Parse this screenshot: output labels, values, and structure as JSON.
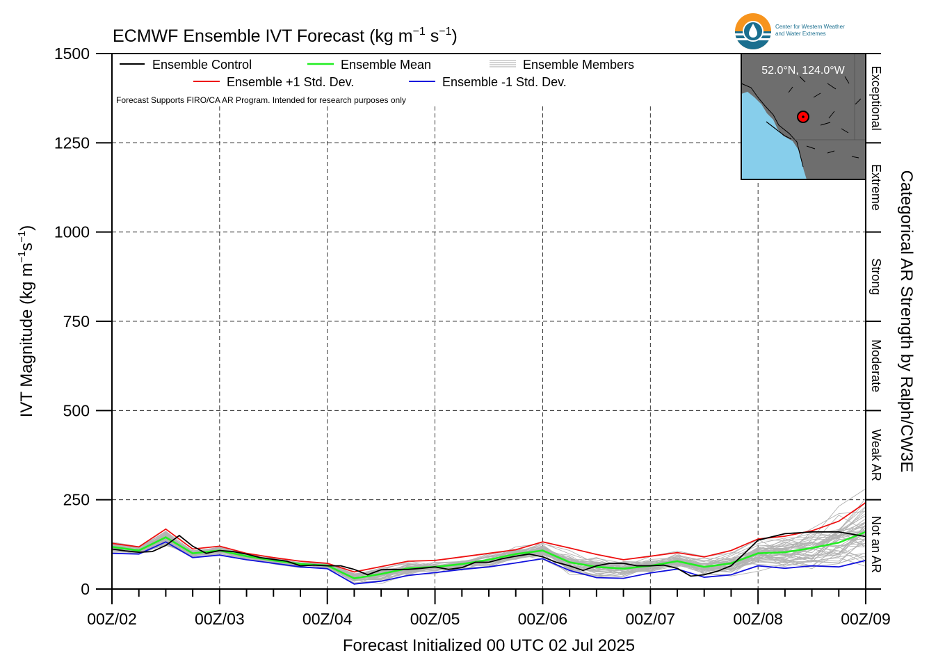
{
  "chart_data": {
    "type": "line",
    "title": "ECMWF Ensemble IVT Forecast (kg m",
    "title_units": [
      {
        "base": "ECMWF Ensemble IVT Forecast (kg m",
        "sup": "−1"
      },
      {
        "base": " s",
        "sup": "−1"
      },
      {
        "base": ")",
        "sup": ""
      }
    ],
    "ylabel_parts": [
      {
        "base": "IVT Magnitude (kg m",
        "sup": "−1"
      },
      {
        "base": "s",
        "sup": "−1"
      },
      {
        "base": ")",
        "sup": ""
      }
    ],
    "xlabel": "Forecast Initialized 00 UTC 02 Jul 2025",
    "right_label": "Categorical AR Strength by Ralph/CW3E",
    "note": "Forecast Supports FIRO/CA AR Program. Intended for research purposes only",
    "ylim": [
      0,
      1500
    ],
    "yticks": [
      0,
      250,
      500,
      750,
      1000,
      1250,
      1500
    ],
    "xlim": [
      0,
      7
    ],
    "xtick_labels": [
      "00Z/02",
      "00Z/03",
      "00Z/04",
      "00Z/05",
      "00Z/06",
      "00Z/07",
      "00Z/08",
      "00Z/09"
    ],
    "grid": true,
    "categories": [
      {
        "label": "Not an AR",
        "range": [
          0,
          250
        ]
      },
      {
        "label": "Weak AR",
        "range": [
          250,
          500
        ]
      },
      {
        "label": "Moderate",
        "range": [
          500,
          750
        ]
      },
      {
        "label": "Strong",
        "range": [
          750,
          1000
        ]
      },
      {
        "label": "Extreme",
        "range": [
          1000,
          1250
        ]
      },
      {
        "label": "Exceptional",
        "range": [
          1250,
          1500
        ]
      }
    ],
    "legend": [
      {
        "name": "Ensemble Control",
        "color": "#000000"
      },
      {
        "name": "Ensemble Mean",
        "color": "#22ee22"
      },
      {
        "name": "Ensemble Members",
        "color": "#aaaaaa"
      },
      {
        "name": "Ensemble +1 Std. Dev.",
        "color": "#ee1111"
      },
      {
        "name": "Ensemble -1 Std. Dev.",
        "color": "#1111dd"
      }
    ],
    "inset": {
      "location": "52.0°N, 124.0°W",
      "marker_color": "#ff0000"
    },
    "logo_text": [
      "Center for Western Weather",
      "and Water Extremes"
    ],
    "x_days": [
      0,
      0.25,
      0.5,
      0.75,
      1,
      1.25,
      1.5,
      1.75,
      2,
      2.25,
      2.5,
      2.75,
      3,
      3.25,
      3.5,
      3.75,
      4,
      4.25,
      4.5,
      4.75,
      5,
      5.25,
      5.5,
      5.75,
      6,
      6.25,
      6.5,
      6.75,
      7
    ],
    "series": [
      {
        "name": "Ensemble Control",
        "color": "#000000",
        "x": [
          0,
          0.125,
          0.25,
          0.375,
          0.5,
          0.625,
          0.75,
          0.875,
          1,
          1.125,
          1.25,
          1.375,
          1.5,
          1.625,
          1.75,
          1.875,
          2,
          2.125,
          2.25,
          2.375,
          2.5,
          2.625,
          2.75,
          2.875,
          3,
          3.125,
          3.25,
          3.375,
          3.5,
          3.625,
          3.75,
          3.875,
          4,
          4.125,
          4.25,
          4.375,
          4.5,
          4.625,
          4.75,
          4.875,
          5,
          5.125,
          5.25,
          5.375,
          5.5,
          5.625,
          5.75,
          5.875,
          6,
          6.25,
          6.5,
          6.75,
          7
        ],
        "y": [
          112,
          107,
          103,
          105,
          122,
          150,
          120,
          100,
          108,
          105,
          98,
          88,
          83,
          78,
          65,
          67,
          65,
          65,
          55,
          40,
          54,
          55,
          55,
          58,
          62,
          55,
          60,
          75,
          75,
          85,
          92,
          98,
          90,
          75,
          65,
          52,
          65,
          72,
          72,
          65,
          65,
          67,
          58,
          36,
          40,
          50,
          65,
          100,
          137,
          155,
          160,
          160,
          147
        ]
      },
      {
        "name": "Ensemble Mean",
        "color": "#22ee22",
        "x": [
          0,
          0.25,
          0.5,
          0.75,
          1,
          1.25,
          1.5,
          1.75,
          2,
          2.25,
          2.5,
          2.75,
          3,
          3.25,
          3.5,
          3.75,
          4,
          4.25,
          4.5,
          4.75,
          5,
          5.25,
          5.5,
          5.75,
          6,
          6.25,
          6.5,
          6.75,
          7
        ],
        "y": [
          118,
          108,
          145,
          100,
          108,
          92,
          80,
          70,
          66,
          30,
          42,
          58,
          62,
          70,
          82,
          98,
          108,
          75,
          62,
          57,
          65,
          78,
          62,
          72,
          100,
          103,
          115,
          130,
          160
        ]
      },
      {
        "name": "Ensemble +1 Std. Dev.",
        "color": "#ee1111",
        "x": [
          0,
          0.25,
          0.5,
          0.75,
          1,
          1.25,
          1.5,
          1.75,
          2,
          2.25,
          2.5,
          2.75,
          3,
          3.25,
          3.5,
          3.75,
          4,
          4.25,
          4.5,
          4.75,
          5,
          5.25,
          5.5,
          5.75,
          6,
          6.25,
          6.5,
          6.75,
          7
        ],
        "y": [
          128,
          118,
          168,
          112,
          120,
          100,
          88,
          78,
          72,
          48,
          63,
          78,
          80,
          90,
          100,
          110,
          132,
          115,
          97,
          82,
          92,
          102,
          90,
          108,
          140,
          148,
          163,
          190,
          242
        ]
      },
      {
        "name": "Ensemble -1 Std. Dev.",
        "color": "#1111dd",
        "x": [
          0,
          0.25,
          0.5,
          0.75,
          1,
          1.25,
          1.5,
          1.75,
          2,
          2.25,
          2.5,
          2.75,
          3,
          3.25,
          3.5,
          3.75,
          4,
          4.25,
          4.5,
          4.75,
          5,
          5.25,
          5.5,
          5.75,
          6,
          6.25,
          6.5,
          6.75,
          7
        ],
        "y": [
          100,
          98,
          132,
          88,
          95,
          82,
          72,
          62,
          57,
          14,
          22,
          38,
          46,
          55,
          62,
          73,
          85,
          52,
          32,
          30,
          45,
          56,
          33,
          40,
          65,
          58,
          65,
          62,
          80
        ]
      }
    ]
  }
}
